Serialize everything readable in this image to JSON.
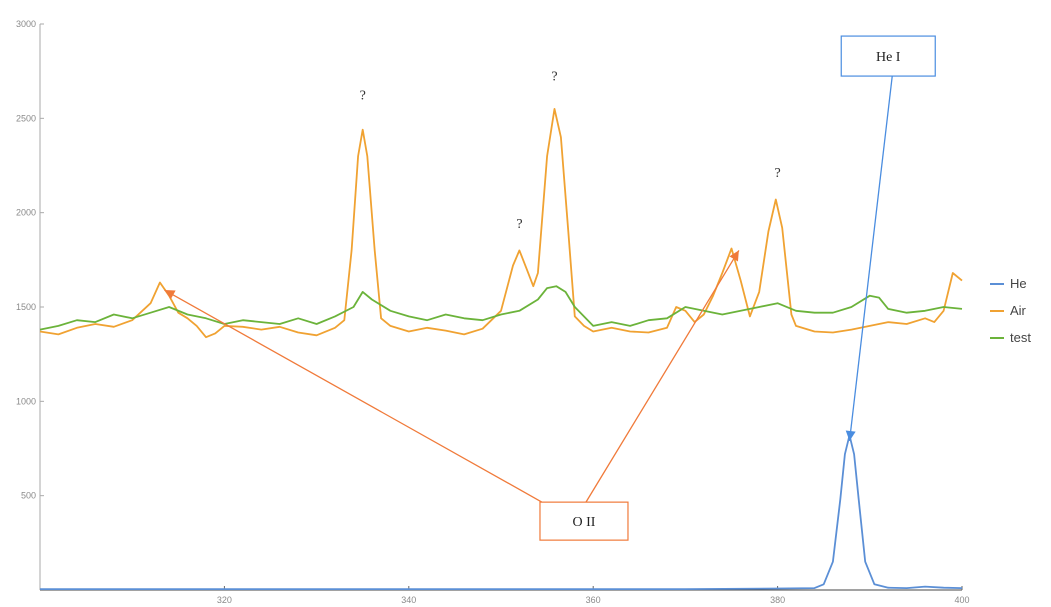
{
  "chart_data": {
    "type": "line",
    "title": "",
    "xlabel": "",
    "ylabel": "",
    "xlim": [
      300,
      400
    ],
    "ylim": [
      0,
      3000
    ],
    "x_ticks": [
      320,
      340,
      360,
      380,
      400
    ],
    "y_ticks": [
      500,
      1000,
      1500,
      2000,
      2500,
      3000
    ],
    "grid": false,
    "legend_position": "right",
    "series": [
      {
        "name": "He",
        "color": "#5b8fd6",
        "points": [
          [
            300,
            5
          ],
          [
            320,
            5
          ],
          [
            340,
            5
          ],
          [
            360,
            5
          ],
          [
            370,
            5
          ],
          [
            380,
            8
          ],
          [
            384,
            10
          ],
          [
            385,
            30
          ],
          [
            386,
            150
          ],
          [
            386.8,
            480
          ],
          [
            387.3,
            720
          ],
          [
            387.8,
            820
          ],
          [
            388.3,
            720
          ],
          [
            388.8,
            480
          ],
          [
            389.5,
            150
          ],
          [
            390.5,
            30
          ],
          [
            392,
            12
          ],
          [
            394,
            10
          ],
          [
            396,
            18
          ],
          [
            398,
            12
          ],
          [
            400,
            10
          ]
        ]
      },
      {
        "name": "Air",
        "color": "#f0a232",
        "points": [
          [
            300,
            1370
          ],
          [
            302,
            1355
          ],
          [
            304,
            1390
          ],
          [
            306,
            1410
          ],
          [
            308,
            1395
          ],
          [
            310,
            1430
          ],
          [
            312,
            1520
          ],
          [
            313,
            1630
          ],
          [
            314,
            1560
          ],
          [
            315,
            1470
          ],
          [
            316,
            1440
          ],
          [
            317,
            1400
          ],
          [
            318,
            1340
          ],
          [
            319,
            1360
          ],
          [
            320,
            1400
          ],
          [
            322,
            1395
          ],
          [
            324,
            1380
          ],
          [
            326,
            1395
          ],
          [
            328,
            1365
          ],
          [
            330,
            1350
          ],
          [
            332,
            1390
          ],
          [
            333,
            1430
          ],
          [
            333.8,
            1800
          ],
          [
            334.5,
            2300
          ],
          [
            335,
            2440
          ],
          [
            335.5,
            2300
          ],
          [
            336.3,
            1800
          ],
          [
            337,
            1440
          ],
          [
            338,
            1400
          ],
          [
            340,
            1370
          ],
          [
            342,
            1390
          ],
          [
            344,
            1375
          ],
          [
            346,
            1355
          ],
          [
            348,
            1385
          ],
          [
            350,
            1480
          ],
          [
            351.3,
            1720
          ],
          [
            352,
            1800
          ],
          [
            352.8,
            1700
          ],
          [
            353.5,
            1610
          ],
          [
            354,
            1680
          ],
          [
            355,
            2300
          ],
          [
            355.8,
            2550
          ],
          [
            356.5,
            2400
          ],
          [
            357.3,
            1900
          ],
          [
            358,
            1450
          ],
          [
            359,
            1400
          ],
          [
            360,
            1370
          ],
          [
            362,
            1390
          ],
          [
            364,
            1370
          ],
          [
            366,
            1365
          ],
          [
            368,
            1390
          ],
          [
            369,
            1500
          ],
          [
            370,
            1480
          ],
          [
            371,
            1420
          ],
          [
            372,
            1460
          ],
          [
            373,
            1560
          ],
          [
            374,
            1680
          ],
          [
            375,
            1810
          ],
          [
            376,
            1640
          ],
          [
            377,
            1450
          ],
          [
            378,
            1580
          ],
          [
            379,
            1900
          ],
          [
            379.8,
            2070
          ],
          [
            380.5,
            1920
          ],
          [
            381.5,
            1460
          ],
          [
            382,
            1400
          ],
          [
            384,
            1370
          ],
          [
            386,
            1365
          ],
          [
            388,
            1380
          ],
          [
            390,
            1400
          ],
          [
            392,
            1420
          ],
          [
            394,
            1410
          ],
          [
            396,
            1440
          ],
          [
            397,
            1420
          ],
          [
            398,
            1480
          ],
          [
            399,
            1680
          ],
          [
            400,
            1640
          ]
        ]
      },
      {
        "name": "test",
        "color": "#6bb33a",
        "points": [
          [
            300,
            1380
          ],
          [
            302,
            1400
          ],
          [
            304,
            1430
          ],
          [
            306,
            1420
          ],
          [
            308,
            1460
          ],
          [
            310,
            1440
          ],
          [
            312,
            1470
          ],
          [
            314,
            1500
          ],
          [
            316,
            1460
          ],
          [
            318,
            1440
          ],
          [
            320,
            1410
          ],
          [
            322,
            1430
          ],
          [
            324,
            1420
          ],
          [
            326,
            1410
          ],
          [
            328,
            1440
          ],
          [
            330,
            1410
          ],
          [
            332,
            1450
          ],
          [
            334,
            1500
          ],
          [
            335,
            1580
          ],
          [
            336,
            1540
          ],
          [
            338,
            1480
          ],
          [
            340,
            1450
          ],
          [
            342,
            1430
          ],
          [
            344,
            1460
          ],
          [
            346,
            1440
          ],
          [
            348,
            1430
          ],
          [
            350,
            1460
          ],
          [
            352,
            1480
          ],
          [
            354,
            1540
          ],
          [
            355,
            1600
          ],
          [
            356,
            1610
          ],
          [
            357,
            1580
          ],
          [
            358,
            1500
          ],
          [
            360,
            1400
          ],
          [
            362,
            1420
          ],
          [
            364,
            1400
          ],
          [
            366,
            1430
          ],
          [
            368,
            1440
          ],
          [
            370,
            1500
          ],
          [
            372,
            1480
          ],
          [
            374,
            1460
          ],
          [
            376,
            1480
          ],
          [
            378,
            1500
          ],
          [
            380,
            1520
          ],
          [
            382,
            1480
          ],
          [
            384,
            1470
          ],
          [
            386,
            1470
          ],
          [
            388,
            1500
          ],
          [
            390,
            1560
          ],
          [
            391,
            1550
          ],
          [
            392,
            1490
          ],
          [
            394,
            1470
          ],
          [
            396,
            1480
          ],
          [
            398,
            1500
          ],
          [
            400,
            1490
          ]
        ]
      }
    ],
    "annotations": {
      "question_marks": [
        {
          "text": "?",
          "x": 335,
          "y": 2600
        },
        {
          "text": "?",
          "x": 355.8,
          "y": 2700
        },
        {
          "text": "?",
          "x": 352,
          "y": 1920
        },
        {
          "text": "?",
          "x": 380,
          "y": 2190
        }
      ],
      "oii": {
        "text": "O II",
        "x": 359,
        "y": 365,
        "color": "#f07a3a",
        "targets": [
          [
            313.5,
            1590
          ],
          [
            375.8,
            1800
          ]
        ]
      },
      "hei": {
        "text": "He I",
        "x": 392,
        "y": 2830,
        "color": "#4a8de0",
        "target": [
          387.8,
          790
        ]
      }
    }
  }
}
